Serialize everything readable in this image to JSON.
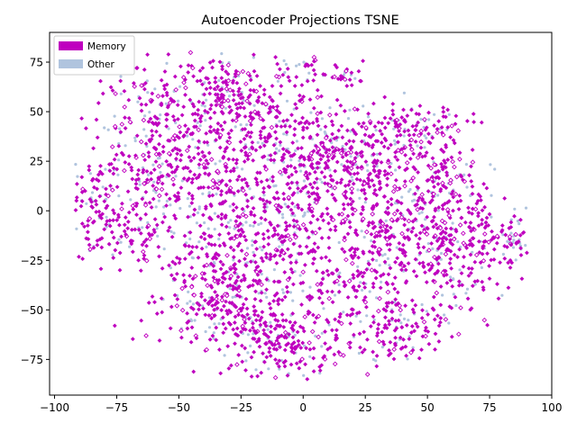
{
  "chart_data": {
    "type": "scatter",
    "title": "Autoencoder Projections TSNE",
    "xlabel": "",
    "ylabel": "",
    "xlim": [
      -102,
      100
    ],
    "ylim": [
      -93,
      90
    ],
    "xticks": [
      -100,
      -75,
      -50,
      -25,
      0,
      25,
      50,
      75,
      100
    ],
    "yticks": [
      -75,
      -50,
      -25,
      0,
      25,
      50,
      75
    ],
    "grid": false,
    "legend_position": "top-left",
    "series": [
      {
        "name": "Memory",
        "color": "#bf00bf",
        "marker": "diamond",
        "approx_count": 2600,
        "extent": {
          "x": [
            -92,
            90
          ],
          "y": [
            -85,
            80
          ]
        }
      },
      {
        "name": "Other",
        "color": "#b0c4de",
        "marker": "dot",
        "approx_count": 700,
        "extent": {
          "x": [
            -92,
            90
          ],
          "y": [
            -85,
            80
          ]
        }
      }
    ]
  }
}
